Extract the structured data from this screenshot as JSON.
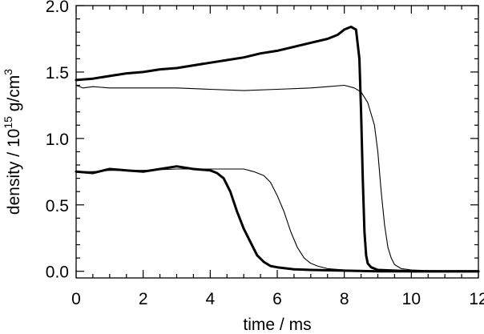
{
  "chart_data": {
    "type": "line",
    "xlabel": "time / ms",
    "ylabel_parts": [
      "density / 10",
      "15",
      " g/cm",
      "3"
    ],
    "xlim": [
      0,
      12
    ],
    "ylim": [
      -0.05,
      2.0
    ],
    "x_ticks": [
      0,
      2,
      4,
      6,
      8,
      10,
      12
    ],
    "x_tick_labels": [
      "0",
      "2",
      "4",
      "6",
      "8",
      "10",
      "12"
    ],
    "x_minor_step": 0.5,
    "y_ticks": [
      0.0,
      0.5,
      1.0,
      1.5,
      2.0
    ],
    "y_tick_labels": [
      "0.0",
      "0.5",
      "1.0",
      "1.5",
      "2.0"
    ],
    "y_minor_step": 0.1,
    "grid": false,
    "legend": "none",
    "series": [
      {
        "style": "thick",
        "color": "#000000",
        "x": [
          0,
          0.5,
          1,
          1.5,
          2,
          2.5,
          3,
          3.5,
          4,
          4.5,
          5,
          5.5,
          6,
          6.5,
          7,
          7.5,
          7.8,
          8.0,
          8.2,
          8.35,
          8.45,
          8.5,
          8.55,
          8.6,
          8.65,
          8.7,
          8.8,
          9.0,
          9.5,
          10,
          11,
          12
        ],
        "y": [
          1.44,
          1.45,
          1.47,
          1.49,
          1.5,
          1.52,
          1.53,
          1.55,
          1.57,
          1.59,
          1.61,
          1.64,
          1.66,
          1.69,
          1.72,
          1.75,
          1.78,
          1.82,
          1.84,
          1.82,
          1.6,
          1.2,
          0.7,
          0.3,
          0.12,
          0.06,
          0.03,
          0.01,
          0.005,
          0.0,
          0.0,
          0.0
        ]
      },
      {
        "style": "thin",
        "color": "#000000",
        "x": [
          0,
          0.2,
          0.5,
          1,
          2,
          3,
          4,
          5,
          6,
          7,
          7.5,
          8,
          8.3,
          8.5,
          8.7,
          8.9,
          9.0,
          9.1,
          9.2,
          9.3,
          9.4,
          9.5,
          9.7,
          10,
          11,
          12
        ],
        "y": [
          1.4,
          1.38,
          1.39,
          1.38,
          1.38,
          1.38,
          1.37,
          1.36,
          1.37,
          1.38,
          1.39,
          1.4,
          1.38,
          1.35,
          1.27,
          1.1,
          0.9,
          0.6,
          0.35,
          0.18,
          0.1,
          0.05,
          0.02,
          0.01,
          0.0,
          0.0
        ]
      },
      {
        "style": "thick",
        "color": "#000000",
        "x": [
          0,
          0.5,
          1,
          1.5,
          2,
          2.5,
          3,
          3.5,
          4,
          4.2,
          4.4,
          4.6,
          4.8,
          5.0,
          5.2,
          5.4,
          5.6,
          5.8,
          6,
          6.5,
          7,
          8,
          9,
          10,
          11,
          12
        ],
        "y": [
          0.75,
          0.74,
          0.77,
          0.76,
          0.75,
          0.77,
          0.79,
          0.77,
          0.76,
          0.74,
          0.7,
          0.6,
          0.45,
          0.32,
          0.22,
          0.12,
          0.07,
          0.04,
          0.03,
          0.015,
          0.01,
          0.005,
          0.0,
          0.0,
          0.0,
          0.0
        ]
      },
      {
        "style": "thin",
        "color": "#000000",
        "x": [
          0,
          0.5,
          1,
          2,
          3,
          4,
          4.5,
          5,
          5.3,
          5.6,
          5.8,
          6.0,
          6.2,
          6.4,
          6.6,
          6.8,
          7.0,
          7.2,
          7.5,
          8,
          9,
          10,
          11,
          12
        ],
        "y": [
          0.75,
          0.75,
          0.76,
          0.76,
          0.77,
          0.77,
          0.77,
          0.77,
          0.75,
          0.72,
          0.67,
          0.57,
          0.45,
          0.3,
          0.18,
          0.1,
          0.06,
          0.04,
          0.02,
          0.01,
          0.0,
          0.0,
          0.0,
          0.0
        ]
      }
    ]
  }
}
